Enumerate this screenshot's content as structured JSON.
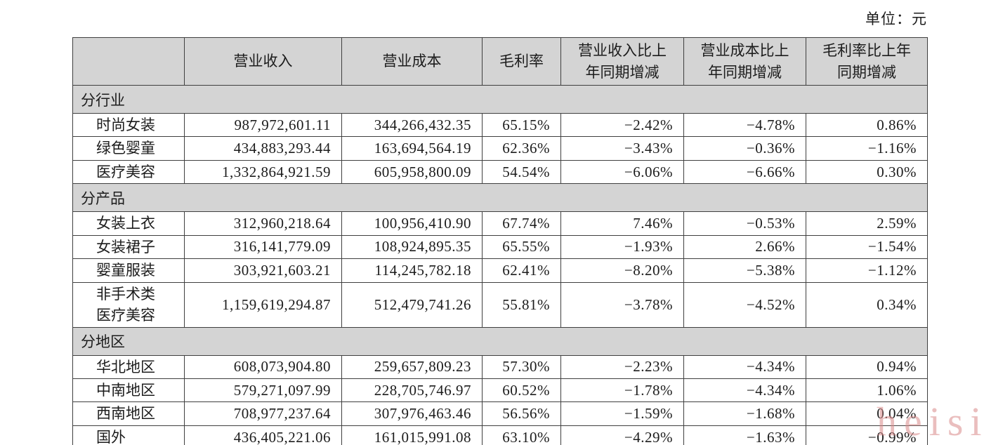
{
  "page": {
    "unit_label": "单位：元",
    "watermark": "heisi",
    "colors": {
      "header_fill": "#d4d4d4",
      "border": "#3f3f3f",
      "watermark_pink": "#d98a8a"
    }
  },
  "table": {
    "headers": [
      "",
      "营业收入",
      "营业成本",
      "毛利率",
      "营业收入比上\n年同期增减",
      "营业成本比上\n年同期增减",
      "毛利率比上年\n同期增减"
    ],
    "sections": [
      {
        "label": "分行业",
        "rows": [
          [
            "时尚女装",
            "987,972,601.11",
            "344,266,432.35",
            "65.15%",
            "−2.42%",
            "−4.78%",
            "0.86%"
          ],
          [
            "绿色婴童",
            "434,883,293.44",
            "163,694,564.19",
            "62.36%",
            "−3.43%",
            "−0.36%",
            "−1.16%"
          ],
          [
            "医疗美容",
            "1,332,864,921.59",
            "605,958,800.09",
            "54.54%",
            "−6.06%",
            "−6.66%",
            "0.30%"
          ]
        ]
      },
      {
        "label": "分产品",
        "rows": [
          [
            "女装上衣",
            "312,960,218.64",
            "100,956,410.90",
            "67.74%",
            "7.46%",
            "−0.53%",
            "2.59%"
          ],
          [
            "女装裙子",
            "316,141,779.09",
            "108,924,895.35",
            "65.55%",
            "−1.93%",
            "2.66%",
            "−1.54%"
          ],
          [
            "婴童服装",
            "303,921,603.21",
            "114,245,782.18",
            "62.41%",
            "−8.20%",
            "−5.38%",
            "−1.12%"
          ],
          [
            "非手术类\n医疗美容",
            "1,159,619,294.87",
            "512,479,741.26",
            "55.81%",
            "−3.78%",
            "−4.52%",
            "0.34%"
          ]
        ]
      },
      {
        "label": "分地区",
        "rows": [
          [
            "华北地区",
            "608,073,904.80",
            "259,657,809.23",
            "57.30%",
            "−2.23%",
            "−4.34%",
            "0.94%"
          ],
          [
            "中南地区",
            "579,271,097.99",
            "228,705,746.97",
            "60.52%",
            "−1.78%",
            "−4.34%",
            "1.06%"
          ],
          [
            "西南地区",
            "708,977,237.64",
            "307,976,463.46",
            "56.56%",
            "−1.59%",
            "−1.68%",
            "0.04%"
          ],
          [
            "国外",
            "436,405,221.06",
            "161,015,991.08",
            "63.10%",
            "−4.29%",
            "−1.63%",
            "−0.99%"
          ]
        ]
      }
    ]
  }
}
